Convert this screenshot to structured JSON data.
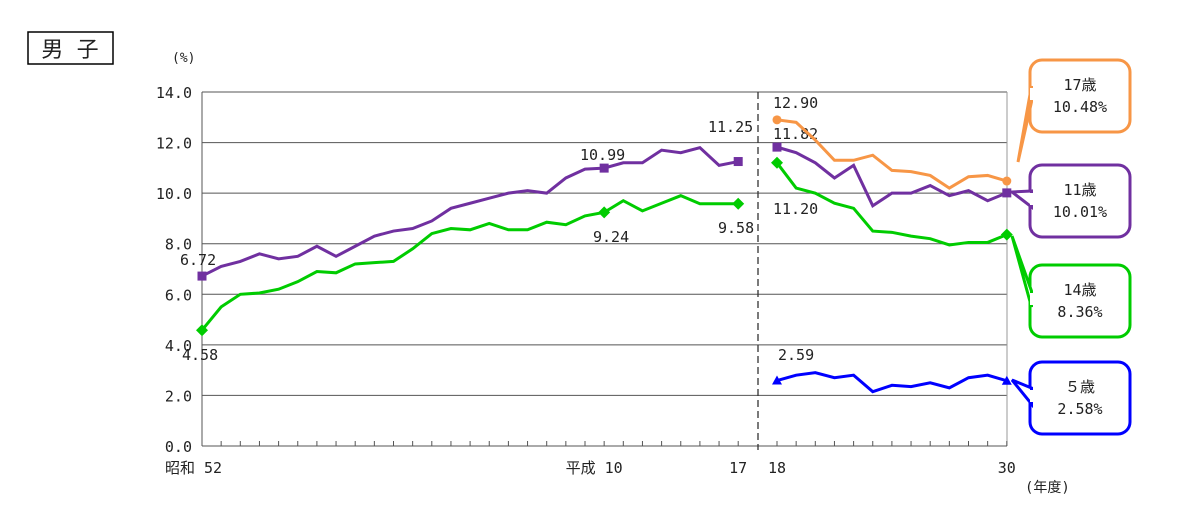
{
  "title": "男 子",
  "chart_data": {
    "type": "line",
    "title": "男 子",
    "ylabel": "(%)",
    "xlabel": "(年度)",
    "ylim": [
      0,
      14
    ],
    "yticks": [
      "0.0",
      "2.0",
      "4.0",
      "6.0",
      "8.0",
      "10.0",
      "12.0",
      "14.0"
    ],
    "ytick_values": [
      0,
      2,
      4,
      6,
      8,
      10,
      12,
      14
    ],
    "xtick_labels": [
      {
        "label": "昭和 52",
        "year": 1977
      },
      {
        "label": "平成 10",
        "year": 1998
      },
      {
        "label": "17",
        "year": 2005
      },
      {
        "label": "18",
        "year": 2006
      },
      {
        "label": "30",
        "year": 2018
      }
    ],
    "grid": true,
    "period1_years": [
      1977,
      2005
    ],
    "period2_years": [
      2006,
      2018
    ],
    "series": [
      {
        "name": "11歳",
        "color": "#7030a0",
        "marker": "square",
        "callout": "10.01%",
        "values1": [
          6.72,
          7.1,
          7.3,
          7.6,
          7.4,
          7.5,
          7.9,
          7.5,
          7.9,
          8.3,
          8.5,
          8.6,
          8.9,
          9.4,
          9.6,
          9.8,
          10.0,
          10.1,
          10.0,
          10.6,
          10.95,
          10.99,
          11.2,
          11.2,
          11.7,
          11.6,
          11.8,
          11.1,
          11.25
        ],
        "values2": [
          11.82,
          11.6,
          11.2,
          10.6,
          11.1,
          9.5,
          10.0,
          10.0,
          10.3,
          9.9,
          10.1,
          9.7,
          10.01
        ],
        "labels": [
          {
            "text": "6.72",
            "year": 1977
          },
          {
            "text": "10.99",
            "year": 1998
          },
          {
            "text": "11.25",
            "year": 2005
          },
          {
            "text": "11.82",
            "year": 2006
          }
        ]
      },
      {
        "name": "14歳",
        "color": "#00cc00",
        "marker": "diamond",
        "callout": "8.36%",
        "values1": [
          4.58,
          5.5,
          6.0,
          6.05,
          6.2,
          6.5,
          6.9,
          6.85,
          7.2,
          7.25,
          7.3,
          7.8,
          8.4,
          8.6,
          8.55,
          8.8,
          8.55,
          8.55,
          8.85,
          8.75,
          9.1,
          9.24,
          9.7,
          9.3,
          9.6,
          9.9,
          9.58,
          9.58,
          9.58
        ],
        "values2": [
          11.2,
          10.2,
          10.0,
          9.6,
          9.4,
          8.5,
          8.45,
          8.3,
          8.2,
          7.95,
          8.05,
          8.05,
          8.36
        ],
        "labels": [
          {
            "text": "4.58",
            "year": 1977
          },
          {
            "text": "9.24",
            "year": 1998
          },
          {
            "text": "9.58",
            "year": 2005
          },
          {
            "text": "11.20",
            "year": 2006
          }
        ]
      },
      {
        "name": "17歳",
        "color": "#f79646",
        "marker": "circle",
        "callout": "10.48%",
        "values2": [
          12.9,
          12.8,
          12.1,
          11.3,
          11.3,
          11.5,
          10.9,
          10.85,
          10.7,
          10.2,
          10.65,
          10.7,
          10.48
        ],
        "labels": [
          {
            "text": "12.90",
            "year": 2006
          }
        ]
      },
      {
        "name": "５歳",
        "color": "#0000ff",
        "marker": "triangle",
        "callout": "2.58%",
        "values2": [
          2.59,
          2.8,
          2.9,
          2.7,
          2.8,
          2.15,
          2.4,
          2.35,
          2.5,
          2.3,
          2.7,
          2.8,
          2.58
        ],
        "labels": [
          {
            "text": "2.59",
            "year": 2006
          }
        ]
      }
    ]
  }
}
